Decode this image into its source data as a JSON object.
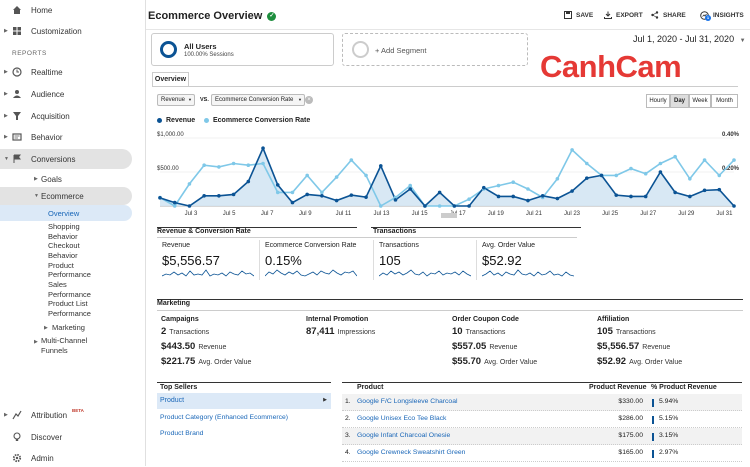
{
  "sidebar": {
    "home": "Home",
    "customization": "Customization",
    "reports_header": "REPORTS",
    "realtime": "Realtime",
    "audience": "Audience",
    "acquisition": "Acquisition",
    "behavior": "Behavior",
    "conversions": "Conversions",
    "goals": "Goals",
    "ecommerce": "Ecommerce",
    "overview": "Overview",
    "shopping_behavior_1": "Shopping",
    "shopping_behavior_2": "Behavior",
    "checkout_behavior_1": "Checkout",
    "checkout_behavior_2": "Behavior",
    "product_performance_1": "Product",
    "product_performance_2": "Performance",
    "sales_performance_1": "Sales",
    "sales_performance_2": "Performance",
    "product_list_performance_1": "Product List",
    "product_list_performance_2": "Performance",
    "marketing": "Marketing",
    "mcf_1": "Multi-Channel",
    "mcf_2": "Funnels",
    "attribution": "Attribution",
    "beta": "BETA",
    "discover": "Discover",
    "admin": "Admin"
  },
  "header": {
    "title": "Ecommerce Overview",
    "save": "SAVE",
    "export": "EXPORT",
    "share": "SHARE",
    "insights": "INSIGHTS",
    "insights_badge": "1",
    "date_range": "Jul 1, 2020 - Jul 31, 2020"
  },
  "segments": {
    "all_users": "All Users",
    "all_users_sub": "100.00% Sessions",
    "add_segment": "+ Add Segment"
  },
  "watermark": "CanhCam",
  "tabs": {
    "overview": "Overview"
  },
  "controls": {
    "metric1": "Revenue",
    "vs": "VS.",
    "metric2": "Ecommerce Conversion Rate",
    "hourly": "Hourly",
    "day": "Day",
    "week": "Week",
    "month": "Month"
  },
  "chart_data": {
    "type": "line",
    "series": [
      {
        "name": "Revenue",
        "color": "#0b5394",
        "values": [
          120,
          50,
          0,
          150,
          150,
          170,
          360,
          850,
          310,
          50,
          170,
          150,
          80,
          160,
          130,
          590,
          90,
          250,
          0,
          200,
          0,
          0,
          270,
          140,
          140,
          80,
          150,
          110,
          220,
          410,
          450,
          160,
          140,
          140,
          500,
          200,
          140,
          230,
          240,
          0
        ]
      },
      {
        "name": "Ecommerce Conversion Rate",
        "color": "#7fc8e8",
        "values": [
          0.05,
          0.0,
          0.13,
          0.24,
          0.23,
          0.25,
          0.24,
          0.25,
          0.08,
          0.08,
          0.18,
          0.08,
          0.17,
          0.27,
          0.18,
          0.0,
          0.05,
          0.12,
          0.0,
          0.0,
          0.0,
          0.04,
          0.1,
          0.12,
          0.14,
          0.1,
          0.05,
          0.16,
          0.33,
          0.25,
          0.18,
          0.18,
          0.22,
          0.19,
          0.25,
          0.29,
          0.16,
          0.27,
          0.18,
          0.27
        ]
      }
    ],
    "x_tick_labels": [
      "Jul 3",
      "Jul 5",
      "Jul 7",
      "Jul 9",
      "Jul 11",
      "Jul 13",
      "Jul 15",
      "Jul 17",
      "Jul 19",
      "Jul 21",
      "Jul 23",
      "Jul 25",
      "Jul 27",
      "Jul 29",
      "Jul 31"
    ],
    "left_axis": [
      "$1,000.00",
      "$500.00"
    ],
    "right_axis": [
      "0.40%",
      "0.20%"
    ],
    "ylim_revenue": [
      0,
      1000
    ],
    "ylim_rate": [
      0,
      0.4
    ]
  },
  "kpis": {
    "rev_conv_header": "Revenue & Conversion Rate",
    "transactions_header": "Transactions",
    "revenue_label": "Revenue",
    "revenue_value": "$5,556.57",
    "conv_label": "Ecommerce Conversion Rate",
    "conv_value": "0.15%",
    "trans_label": "Transactions",
    "trans_value": "105",
    "aov_label": "Avg. Order Value",
    "aov_value": "$52.92"
  },
  "marketing": {
    "header": "Marketing",
    "campaigns": {
      "title": "Campaigns",
      "count": "2",
      "count_label": "Transactions",
      "revenue": "$443.50",
      "revenue_label": "Revenue",
      "aov": "$221.75",
      "aov_label": "Avg. Order Value"
    },
    "internal": {
      "title": "Internal Promotion",
      "count": "87,411",
      "count_label": "Impressions"
    },
    "coupon": {
      "title": "Order Coupon Code",
      "count": "10",
      "count_label": "Transactions",
      "revenue": "$557.05",
      "revenue_label": "Revenue",
      "aov": "$55.70",
      "aov_label": "Avg. Order Value"
    },
    "affiliation": {
      "title": "Affiliation",
      "count": "105",
      "count_label": "Transactions",
      "revenue": "$5,556.57",
      "revenue_label": "Revenue",
      "aov": "$52.92",
      "aov_label": "Avg. Order Value"
    }
  },
  "top_sellers": {
    "header": "Top Sellers",
    "items": [
      "Product",
      "Product Category (Enhanced Ecommerce)",
      "Product Brand"
    ]
  },
  "product_table": {
    "col_product": "Product",
    "col_revenue": "Product Revenue",
    "col_pct": "% Product Revenue",
    "rows": [
      {
        "idx": "1.",
        "name": "Google F/C Longsleeve Charcoal",
        "revenue": "$330.00",
        "pct": "5.94%",
        "pct_num": 5.94
      },
      {
        "idx": "2.",
        "name": "Google Unisex Eco Tee Black",
        "revenue": "$286.00",
        "pct": "5.15%",
        "pct_num": 5.15
      },
      {
        "idx": "3.",
        "name": "Google Infant Charcoal Onesie",
        "revenue": "$175.00",
        "pct": "3.15%",
        "pct_num": 3.15
      },
      {
        "idx": "4.",
        "name": "Google Crewneck Sweatshirt Green",
        "revenue": "$165.00",
        "pct": "2.97%",
        "pct_num": 2.97
      }
    ]
  }
}
